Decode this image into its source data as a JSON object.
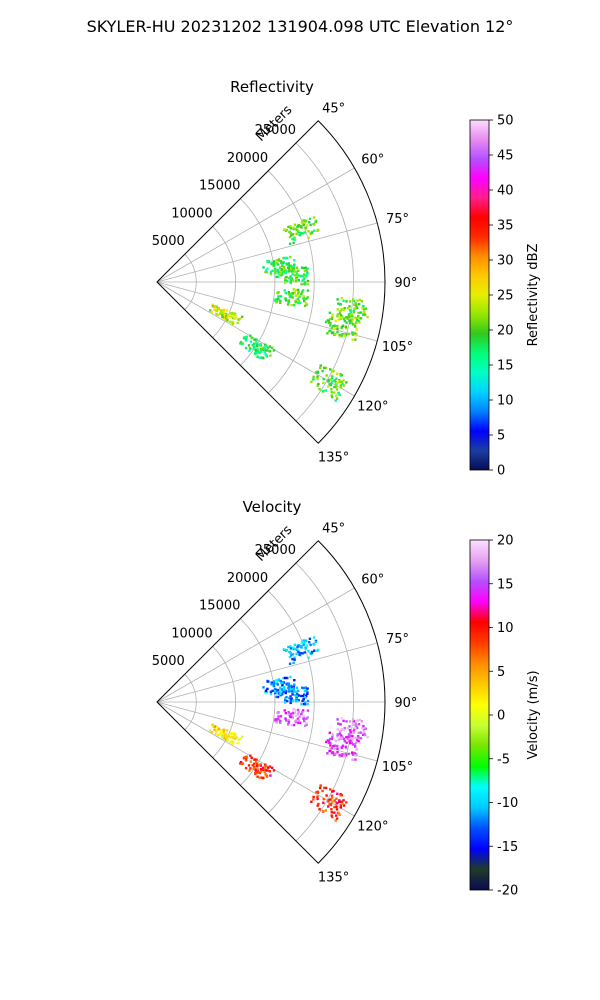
{
  "figure_title": "SKYLER-HU  20231202  131904.098 UTC Elevation 12°",
  "panels": [
    {
      "title": "Reflectivity",
      "range_label": "Meters",
      "range_ticks": [
        "5000",
        "10000",
        "15000",
        "20000",
        "25000"
      ],
      "angle_ticks": [
        "45°",
        "60°",
        "75°",
        "90°",
        "105°",
        "120°",
        "135°"
      ],
      "colorbar": {
        "label": "Reflectivity dBZ",
        "ticks": [
          "0",
          "5",
          "10",
          "15",
          "20",
          "25",
          "30",
          "35",
          "40",
          "45",
          "50"
        ],
        "min": 0,
        "max": 50,
        "stops": [
          "#0a0a5a",
          "#1a3fa0",
          "#0000ff",
          "#0082ff",
          "#00d2ff",
          "#00ffc8",
          "#00ff78",
          "#32c81e",
          "#96e600",
          "#e6f000",
          "#ffc800",
          "#ff8c00",
          "#ff2800",
          "#ff0000",
          "#ff1e8c",
          "#ff00ff",
          "#b450ff",
          "#e68cf0",
          "#ffdcff"
        ]
      }
    },
    {
      "title": "Velocity",
      "range_label": "Meters",
      "range_ticks": [
        "5000",
        "10000",
        "15000",
        "20000",
        "25000"
      ],
      "angle_ticks": [
        "45°",
        "60°",
        "75°",
        "90°",
        "105°",
        "120°",
        "135°"
      ],
      "colorbar": {
        "label": "Velocity (m/s)",
        "ticks": [
          "-20",
          "-15",
          "-10",
          "-5",
          "0",
          "5",
          "10",
          "15",
          "20"
        ],
        "min": -20,
        "max": 20,
        "stops": [
          "#0a0a50",
          "#1e3c28",
          "#0000ff",
          "#0050ff",
          "#00c8ff",
          "#00ffff",
          "#00ff00",
          "#78e600",
          "#c8ff32",
          "#ffff00",
          "#ffc800",
          "#ff8c00",
          "#ff3c00",
          "#ff0000",
          "#ff00ff",
          "#b450ff",
          "#e6a0f0",
          "#ffe0ff"
        ]
      }
    }
  ],
  "chart_data": [
    {
      "type": "heatmap",
      "projection": "polar-sector",
      "title": "Reflectivity",
      "theta_range_deg": [
        45,
        135
      ],
      "r_range_m": [
        0,
        29000
      ],
      "rlabel": "Meters",
      "grid": true,
      "clabel": "Reflectivity dBZ",
      "clim": [
        0,
        50
      ],
      "echo_regions": [
        {
          "theta_deg": 70,
          "r_m": 19500,
          "value": 20
        },
        {
          "theta_deg": 82,
          "r_m": 15500,
          "value": 18
        },
        {
          "theta_deg": 87,
          "r_m": 17000,
          "value": 19
        },
        {
          "theta_deg": 98,
          "r_m": 25000,
          "value": 20
        },
        {
          "theta_deg": 103,
          "r_m": 24000,
          "value": 21
        },
        {
          "theta_deg": 115,
          "r_m": 9500,
          "value": 24
        },
        {
          "theta_deg": 123,
          "r_m": 15000,
          "value": 18
        },
        {
          "theta_deg": 120,
          "r_m": 25000,
          "value": 20
        },
        {
          "theta_deg": 96,
          "r_m": 17000,
          "value": 20
        }
      ]
    },
    {
      "type": "heatmap",
      "projection": "polar-sector",
      "title": "Velocity",
      "theta_range_deg": [
        45,
        135
      ],
      "r_range_m": [
        0,
        29000
      ],
      "rlabel": "Meters",
      "grid": true,
      "clabel": "Velocity (m/s)",
      "clim": [
        -20,
        20
      ],
      "echo_regions": [
        {
          "theta_deg": 70,
          "r_m": 19500,
          "value": -11
        },
        {
          "theta_deg": 82,
          "r_m": 15500,
          "value": -12
        },
        {
          "theta_deg": 87,
          "r_m": 17000,
          "value": -12
        },
        {
          "theta_deg": 98,
          "r_m": 25000,
          "value": 16
        },
        {
          "theta_deg": 103,
          "r_m": 24000,
          "value": 15
        },
        {
          "theta_deg": 115,
          "r_m": 9500,
          "value": 2
        },
        {
          "theta_deg": 123,
          "r_m": 15000,
          "value": 9
        },
        {
          "theta_deg": 120,
          "r_m": 25000,
          "value": 9
        },
        {
          "theta_deg": 96,
          "r_m": 17000,
          "value": 16
        }
      ]
    }
  ]
}
